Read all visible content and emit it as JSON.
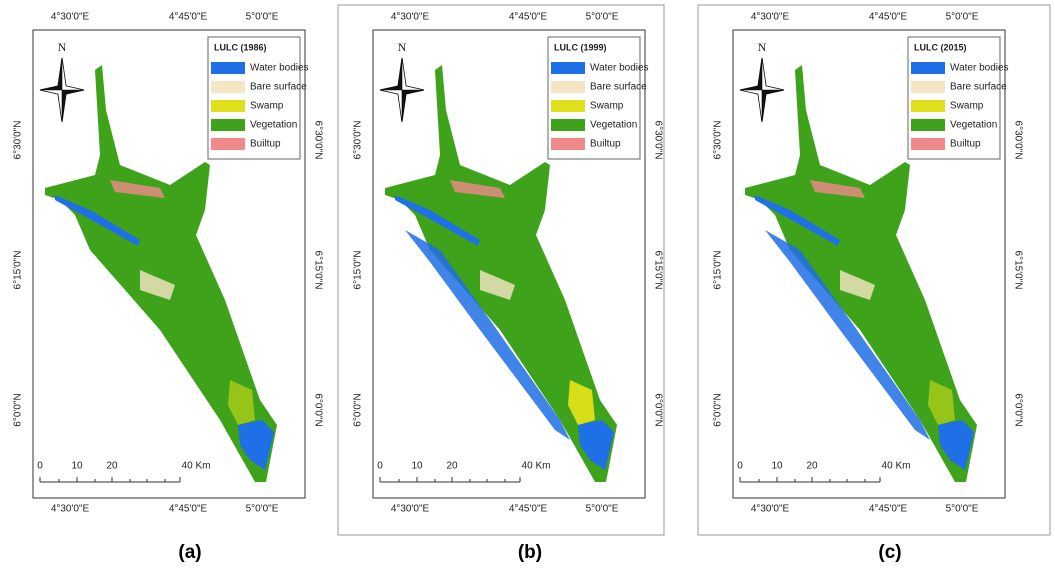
{
  "panels": [
    {
      "legend_title": "LULC (1986)",
      "caption": "(a)"
    },
    {
      "legend_title": "LULC (1999)",
      "caption": "(b)"
    },
    {
      "legend_title": "LULC (2015)",
      "caption": "(c)"
    }
  ],
  "legend_items": [
    {
      "name": "Water bodies",
      "color": "#1f6fe6"
    },
    {
      "name": "Bare surface",
      "color": "#f7e6c4"
    },
    {
      "name": "Swamp",
      "color": "#e0e01a"
    },
    {
      "name": "Vegetation",
      "color": "#3ea31a"
    },
    {
      "name": "Builtup",
      "color": "#f08a8a"
    }
  ],
  "longitudes": [
    "4°30'0\"E",
    "4°45'0\"E",
    "5°0'0\"E"
  ],
  "latitudes": [
    "6°30'0\"N",
    "6°15'0\"N",
    "6°0'0\"N"
  ],
  "north": "N",
  "scale_labels": [
    "0",
    "10",
    "20",
    "40 Km"
  ]
}
